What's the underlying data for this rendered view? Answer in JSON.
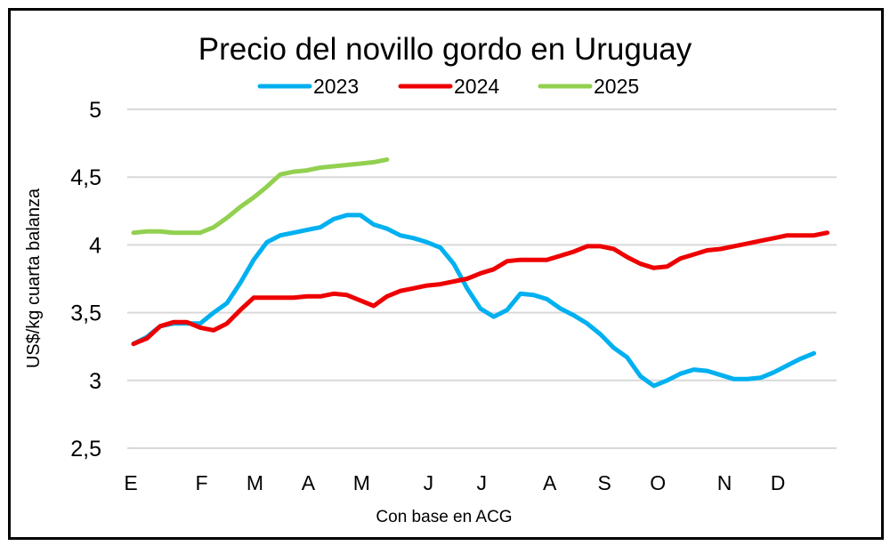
{
  "chart_data": {
    "type": "line",
    "title": "Precio del novillo gordo en Uruguay",
    "xlabel": "Con base en ACG",
    "ylabel": "US$/kg cuarta balanza",
    "ylim": [
      2.5,
      5
    ],
    "yticks": [
      "2,5",
      "3",
      "3,5",
      "4",
      "4,5",
      "5"
    ],
    "ytick_values": [
      2.5,
      3,
      3.5,
      4,
      4.5,
      5
    ],
    "grid": true,
    "legend": "top",
    "xlim": [
      0.53,
      53.7
    ],
    "xticks": [
      {
        "label": "E",
        "x": 0.8
      },
      {
        "label": "F",
        "x": 6.1
      },
      {
        "label": "M",
        "x": 10.1
      },
      {
        "label": "A",
        "x": 14.1
      },
      {
        "label": "M",
        "x": 18.1
      },
      {
        "label": "J",
        "x": 23.1
      },
      {
        "label": "J",
        "x": 27.1
      },
      {
        "label": "A",
        "x": 32.2
      },
      {
        "label": "S",
        "x": 36.3
      },
      {
        "label": "O",
        "x": 40.3
      },
      {
        "label": "N",
        "x": 45.3
      },
      {
        "label": "D",
        "x": 49.3
      }
    ],
    "series": [
      {
        "name": "2023",
        "color": "#00b0f0",
        "values": [
          3.27,
          3.32,
          3.4,
          3.42,
          3.42,
          3.42,
          3.5,
          3.57,
          3.72,
          3.89,
          4.02,
          4.07,
          4.09,
          4.11,
          4.13,
          4.19,
          4.22,
          4.22,
          4.15,
          4.12,
          4.07,
          4.05,
          4.02,
          3.98,
          3.86,
          3.68,
          3.53,
          3.47,
          3.52,
          3.64,
          3.63,
          3.6,
          3.53,
          3.48,
          3.42,
          3.34,
          3.24,
          3.17,
          3.03,
          2.96,
          3.0,
          3.05,
          3.08,
          3.07,
          3.04,
          3.01,
          3.01,
          3.02,
          3.06,
          3.11,
          3.16,
          3.2
        ]
      },
      {
        "name": "2024",
        "color": "#ee0000",
        "values": [
          3.27,
          3.31,
          3.4,
          3.43,
          3.43,
          3.39,
          3.37,
          3.42,
          3.52,
          3.61,
          3.61,
          3.61,
          3.61,
          3.62,
          3.62,
          3.64,
          3.63,
          3.59,
          3.55,
          3.62,
          3.66,
          3.68,
          3.7,
          3.71,
          3.73,
          3.75,
          3.79,
          3.82,
          3.88,
          3.89,
          3.89,
          3.89,
          3.92,
          3.95,
          3.99,
          3.99,
          3.97,
          3.91,
          3.86,
          3.83,
          3.84,
          3.9,
          3.93,
          3.96,
          3.97,
          3.99,
          4.01,
          4.03,
          4.05,
          4.07,
          4.07,
          4.07,
          4.09
        ]
      },
      {
        "name": "2025",
        "color": "#92d050",
        "values": [
          4.09,
          4.1,
          4.1,
          4.09,
          4.09,
          4.09,
          4.13,
          4.2,
          4.28,
          4.35,
          4.43,
          4.52,
          4.54,
          4.55,
          4.57,
          4.58,
          4.59,
          4.6,
          4.61,
          4.63
        ]
      }
    ]
  }
}
